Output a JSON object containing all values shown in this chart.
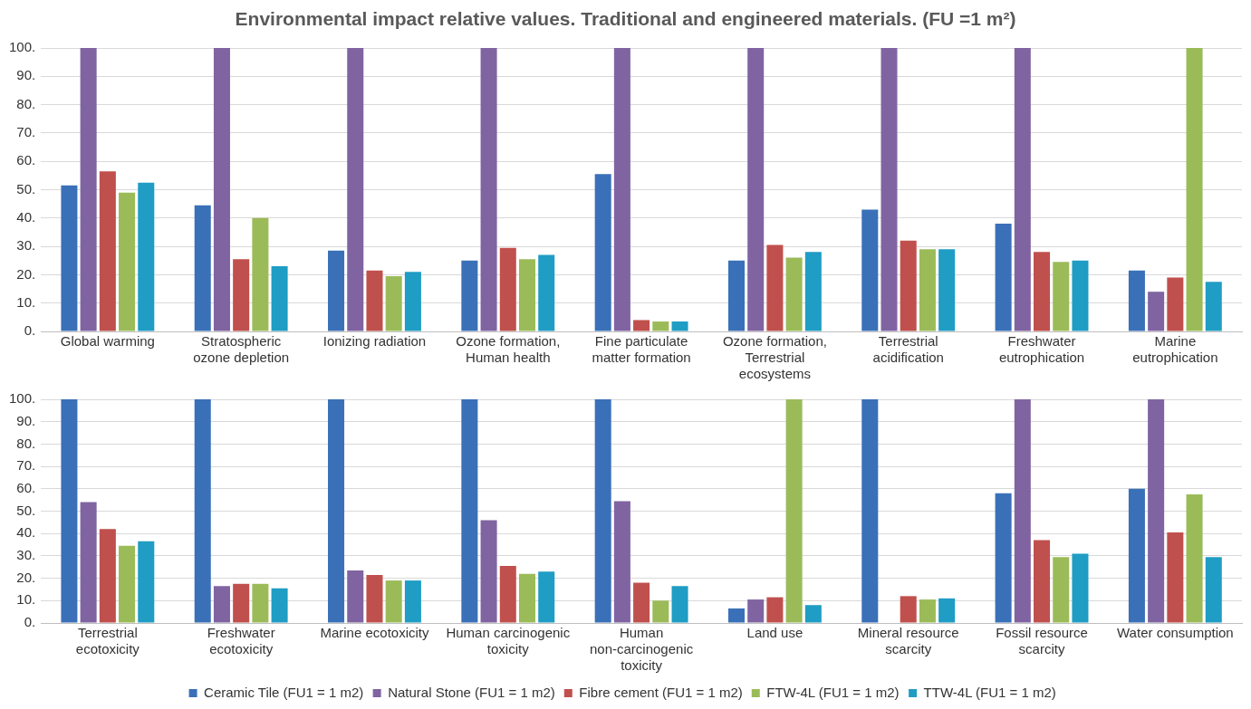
{
  "chart_data": [
    {
      "type": "bar",
      "title": "Environmental impact relative values. Traditional and engineered materials. (FU =1 m²)",
      "categories": [
        "Global warming",
        "Stratospheric ozone depletion",
        "Ionizing radiation",
        "Ozone formation, Human health",
        "Fine particulate matter formation",
        "Ozone formation, Terrestrial ecosystems",
        "Terrestrial acidification",
        "Freshwater eutrophication",
        "Marine eutrophication"
      ],
      "series": [
        {
          "color": "#3a70b8",
          "values": [
            51.5,
            44.5,
            28.5,
            25,
            55.5,
            25,
            43,
            38,
            21.5
          ]
        },
        {
          "color": "#8064a2",
          "values": [
            100,
            100,
            100,
            100,
            100,
            100,
            100,
            100,
            14
          ]
        },
        {
          "color": "#c0504d",
          "values": [
            56.5,
            25.5,
            21.5,
            29.5,
            4,
            30.5,
            32,
            28,
            19
          ]
        },
        {
          "color": "#9bbb59",
          "values": [
            49,
            40,
            19.5,
            25.5,
            3.5,
            26,
            29,
            24.5,
            100
          ]
        },
        {
          "color": "#1f9dc4",
          "values": [
            52.5,
            23,
            21,
            27,
            3.5,
            28,
            29,
            25,
            17.5
          ]
        }
      ],
      "ylim": [
        0,
        100
      ],
      "yticks": [
        {
          "value": 0,
          "label": "0."
        },
        {
          "value": 10,
          "label": "10."
        },
        {
          "value": 20,
          "label": "20."
        },
        {
          "value": 30,
          "label": "30."
        },
        {
          "value": 40,
          "label": "40."
        },
        {
          "value": 50,
          "label": "50."
        },
        {
          "value": 60,
          "label": "60."
        },
        {
          "value": 70,
          "label": "70."
        },
        {
          "value": 80,
          "label": "80."
        },
        {
          "value": 90,
          "label": "90."
        },
        {
          "value": 100,
          "label": "100."
        }
      ],
      "grid": "y",
      "legend": false
    },
    {
      "type": "bar",
      "categories": [
        "Terrestrial ecotoxicity",
        "Freshwater ecotoxicity",
        "Marine ecotoxicity",
        "Human carcinogenic toxicity",
        "Human non-carcinogenic toxicity",
        "Land use",
        "Mineral resource scarcity",
        "Fossil resource scarcity",
        "Water consumption"
      ],
      "series": [
        {
          "name": "Ceramic Tile (FU1 = 1 m2)",
          "color": "#3a70b8",
          "values": [
            100,
            100,
            100,
            100,
            100,
            6.5,
            100,
            58,
            60
          ]
        },
        {
          "name": "Natural Stone (FU1 = 1 m2)",
          "color": "#8064a2",
          "values": [
            54,
            16.5,
            23.5,
            46,
            54.5,
            10.5,
            0,
            100,
            100
          ]
        },
        {
          "name": "Fibre cement (FU1 = 1 m2)",
          "color": "#c0504d",
          "values": [
            42,
            17.5,
            21.5,
            25.5,
            18,
            11.5,
            12,
            37,
            40.5
          ]
        },
        {
          "name": "FTW-4L (FU1 = 1 m2)",
          "color": "#9bbb59",
          "values": [
            34.5,
            17.5,
            19,
            22,
            10,
            100,
            10.5,
            29.5,
            57.5
          ]
        },
        {
          "name": "TTW-4L (FU1 = 1 m2)",
          "color": "#1f9dc4",
          "values": [
            36.5,
            15.5,
            19,
            23,
            16.5,
            8,
            11,
            31,
            29.5
          ]
        }
      ],
      "ylim": [
        0,
        100
      ],
      "yticks": [
        {
          "value": 0,
          "label": "0."
        },
        {
          "value": 10,
          "label": "10."
        },
        {
          "value": 20,
          "label": "20."
        },
        {
          "value": 30,
          "label": "30."
        },
        {
          "value": 40,
          "label": "40."
        },
        {
          "value": 50,
          "label": "50."
        },
        {
          "value": 60,
          "label": "60."
        },
        {
          "value": 70,
          "label": "70."
        },
        {
          "value": 80,
          "label": "80."
        },
        {
          "value": 90,
          "label": "90."
        },
        {
          "value": 100,
          "label": "100."
        }
      ],
      "grid": "y",
      "legend": "bottom"
    }
  ]
}
